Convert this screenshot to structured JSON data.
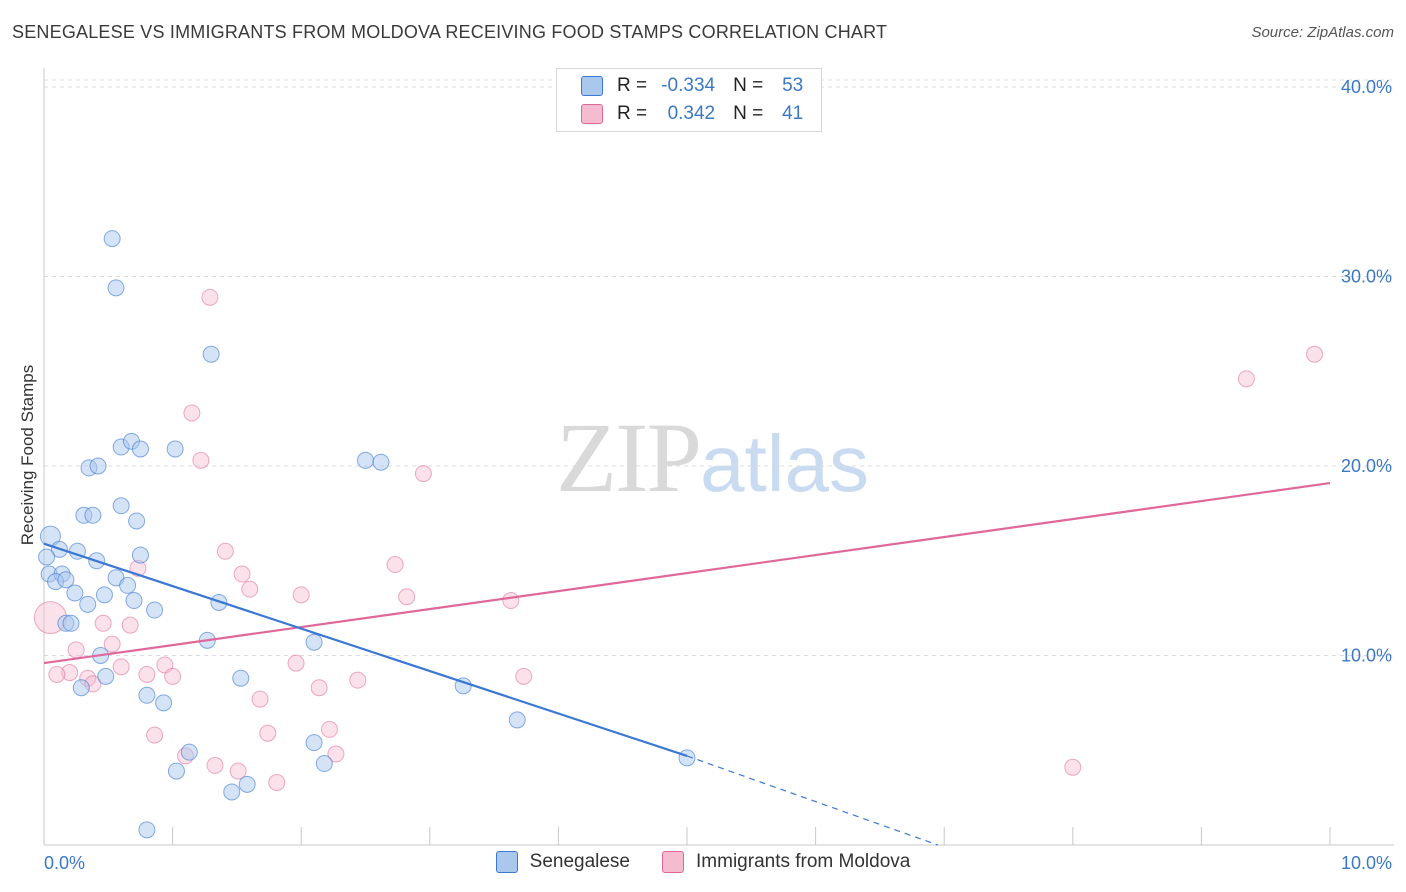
{
  "title": "SENEGALESE VS IMMIGRANTS FROM MOLDOVA RECEIVING FOOD STAMPS CORRELATION CHART",
  "source": "Source: ZipAtlas.com",
  "watermark": {
    "zip": "ZIP",
    "atlas": "atlas"
  },
  "colors": {
    "blue": "#3a78d4",
    "blue_fill": "#aac8ee",
    "pink": "#e0679a",
    "pink_fill": "#f5bcd0",
    "tick_text": "#3b78c8",
    "grid": "#dcdcdc"
  },
  "legend_top": [
    {
      "r_label": "R =",
      "r_value": "-0.334",
      "n_label": "N =",
      "n_value": "53"
    },
    {
      "r_label": "R =",
      "r_value": "0.342",
      "n_label": "N =",
      "n_value": "41"
    }
  ],
  "legend_bottom": [
    "Senegalese",
    "Immigrants from Moldova"
  ],
  "chart_data": {
    "type": "scatter",
    "title": "SENEGALESE VS IMMIGRANTS FROM MOLDOVA RECEIVING FOOD STAMPS CORRELATION CHART",
    "xlabel": "",
    "ylabel": "Receiving Food Stamps",
    "xlim": [
      0,
      10
    ],
    "ylim": [
      0,
      40
    ],
    "x_tick_labels": [
      "0.0%",
      "10.0%"
    ],
    "y_ticks": [
      10,
      20,
      30,
      40
    ],
    "y_tick_labels": [
      "10.0%",
      "20.0%",
      "30.0%",
      "40.0%"
    ],
    "grid": true,
    "legend_position": "top-center",
    "series": [
      {
        "name": "Senegalese",
        "r": -0.334,
        "n": 53,
        "trend": {
          "x0": 0.0,
          "y0": 15.9,
          "x1": 5.0,
          "y1": 4.7,
          "dash_x1": 6.95,
          "dash_y1": 0.0
        },
        "points": [
          [
            0.53,
            32.0
          ],
          [
            0.56,
            29.4
          ],
          [
            1.3,
            25.9
          ],
          [
            0.6,
            21.0
          ],
          [
            0.68,
            21.3
          ],
          [
            0.75,
            20.9
          ],
          [
            1.02,
            20.9
          ],
          [
            0.35,
            19.9
          ],
          [
            0.42,
            20.0
          ],
          [
            2.5,
            20.3
          ],
          [
            2.62,
            20.2
          ],
          [
            0.6,
            17.9
          ],
          [
            0.31,
            17.4
          ],
          [
            0.38,
            17.4
          ],
          [
            0.72,
            17.1
          ],
          [
            0.05,
            16.3
          ],
          [
            0.12,
            15.6
          ],
          [
            0.26,
            15.5
          ],
          [
            0.75,
            15.3
          ],
          [
            0.02,
            15.2
          ],
          [
            0.41,
            15.0
          ],
          [
            0.04,
            14.3
          ],
          [
            0.14,
            14.3
          ],
          [
            0.56,
            14.1
          ],
          [
            0.09,
            13.9
          ],
          [
            0.17,
            14.0
          ],
          [
            0.65,
            13.7
          ],
          [
            0.24,
            13.3
          ],
          [
            0.47,
            13.2
          ],
          [
            0.34,
            12.7
          ],
          [
            0.7,
            12.9
          ],
          [
            1.36,
            12.8
          ],
          [
            0.86,
            12.4
          ],
          [
            0.17,
            11.7
          ],
          [
            0.21,
            11.7
          ],
          [
            1.27,
            10.8
          ],
          [
            2.1,
            10.7
          ],
          [
            0.44,
            10.0
          ],
          [
            0.48,
            8.9
          ],
          [
            1.53,
            8.8
          ],
          [
            3.26,
            8.4
          ],
          [
            0.29,
            8.3
          ],
          [
            0.8,
            7.9
          ],
          [
            0.93,
            7.5
          ],
          [
            3.68,
            6.6
          ],
          [
            1.13,
            4.9
          ],
          [
            2.1,
            5.4
          ],
          [
            5.0,
            4.6
          ],
          [
            2.18,
            4.3
          ],
          [
            1.03,
            3.9
          ],
          [
            1.46,
            2.8
          ],
          [
            1.58,
            3.2
          ],
          [
            0.8,
            0.8
          ]
        ]
      },
      {
        "name": "Immigrants from Moldova",
        "r": 0.342,
        "n": 41,
        "trend": {
          "x0": 0.0,
          "y0": 9.6,
          "x1": 10.0,
          "y1": 19.1
        },
        "points": [
          [
            1.29,
            28.9
          ],
          [
            9.88,
            25.9
          ],
          [
            9.35,
            24.6
          ],
          [
            1.15,
            22.8
          ],
          [
            1.22,
            20.3
          ],
          [
            2.95,
            19.6
          ],
          [
            1.41,
            15.5
          ],
          [
            2.73,
            14.8
          ],
          [
            0.73,
            14.6
          ],
          [
            1.54,
            14.3
          ],
          [
            1.6,
            13.5
          ],
          [
            2.0,
            13.2
          ],
          [
            2.82,
            13.1
          ],
          [
            3.63,
            12.9
          ],
          [
            0.05,
            12.0
          ],
          [
            0.46,
            11.7
          ],
          [
            0.67,
            11.6
          ],
          [
            0.53,
            10.6
          ],
          [
            0.25,
            10.3
          ],
          [
            1.96,
            9.6
          ],
          [
            0.94,
            9.5
          ],
          [
            0.6,
            9.4
          ],
          [
            0.2,
            9.1
          ],
          [
            0.1,
            9.0
          ],
          [
            0.8,
            9.0
          ],
          [
            1.0,
            8.9
          ],
          [
            0.34,
            8.8
          ],
          [
            3.73,
            8.9
          ],
          [
            2.44,
            8.7
          ],
          [
            0.38,
            8.5
          ],
          [
            2.14,
            8.3
          ],
          [
            1.68,
            7.7
          ],
          [
            0.86,
            5.8
          ],
          [
            2.22,
            6.1
          ],
          [
            1.74,
            5.9
          ],
          [
            2.27,
            4.8
          ],
          [
            1.1,
            4.7
          ],
          [
            1.33,
            4.2
          ],
          [
            1.51,
            3.9
          ],
          [
            8.0,
            4.1
          ],
          [
            1.81,
            3.3
          ]
        ]
      }
    ]
  }
}
